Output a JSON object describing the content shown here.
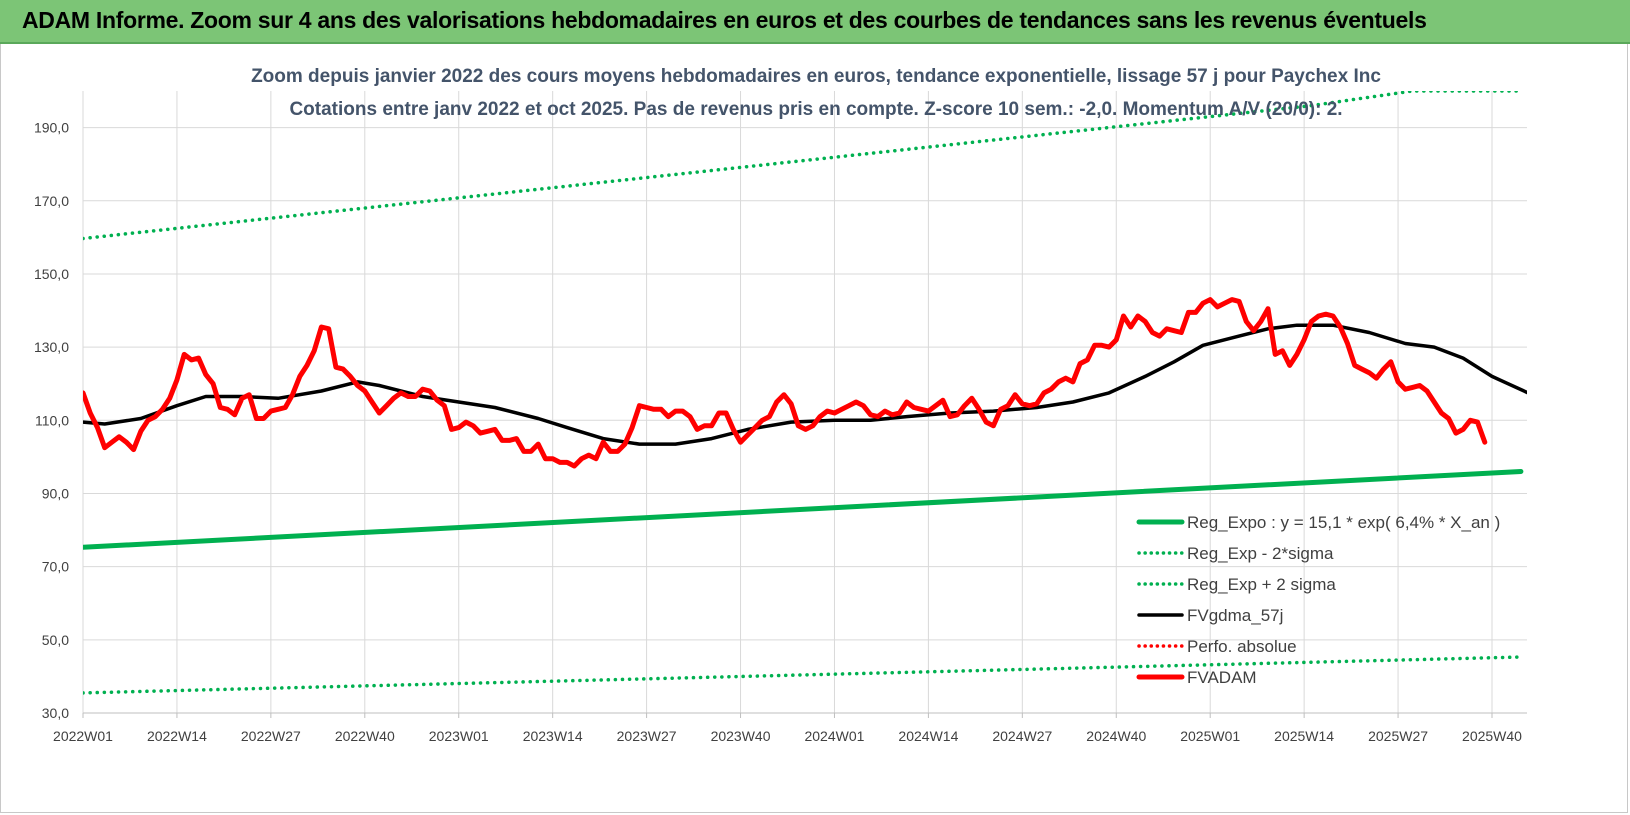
{
  "banner": {
    "title": "ADAM Informe. Zoom sur 4 ans des valorisations hebdomadaires en euros et des courbes de tendances sans les revenus éventuels",
    "background": "#7cc576"
  },
  "chart_data": {
    "type": "line",
    "title": "Zoom depuis janvier 2022 des cours moyens hebdomadaires en euros, tendance exponentielle, lissage 57 j pour Paychex Inc",
    "subtitle": "Cotations entre janv 2022 et oct 2025. Pas de revenus pris en compte. Z-score 10 sem.: -2,0.  Momentum A/V (20/0): 2.",
    "xlabel": "",
    "ylabel": "",
    "ylim": [
      30,
      200
    ],
    "y_ticks": [
      "30,0",
      "50,0",
      "70,0",
      "90,0",
      "110,0",
      "130,0",
      "150,0",
      "170,0",
      "190,0"
    ],
    "x_ticks": [
      "2022W01",
      "2022W14",
      "2022W27",
      "2022W40",
      "2023W01",
      "2023W14",
      "2023W27",
      "2023W40",
      "2024W01",
      "2024W14",
      "2024W27",
      "2024W40",
      "2025W01",
      "2025W14",
      "2025W27",
      "2025W40"
    ],
    "grid": true,
    "legend_position": "bottom-right",
    "n_weeks": 200,
    "series": [
      {
        "name": "Reg_Expo : y = 15,1 * exp( 6,4% * X_an )",
        "color": "#00b050",
        "style": "solid-thick",
        "values": [
          [
            0,
            75.3
          ],
          [
            199,
            96.0
          ]
        ]
      },
      {
        "name": "Reg_Exp - 2*sigma",
        "color": "#00b050",
        "style": "dotted",
        "values": [
          [
            0,
            35.5
          ],
          [
            199,
            45.3
          ]
        ]
      },
      {
        "name": "Reg_Exp + 2 sigma",
        "color": "#00b050",
        "style": "dotted",
        "values": [
          [
            0,
            159.7
          ],
          [
            156,
            193
          ],
          [
            170,
            196
          ],
          [
            184,
            200
          ],
          [
            199,
            200
          ]
        ]
      },
      {
        "name": "FVgdma_57j",
        "color": "#000000",
        "style": "solid",
        "values": [
          [
            0,
            109.5
          ],
          [
            3,
            109
          ],
          [
            8,
            110.5
          ],
          [
            13,
            114
          ],
          [
            17,
            116.5
          ],
          [
            22,
            116.5
          ],
          [
            27,
            116
          ],
          [
            33,
            118
          ],
          [
            38,
            120.5
          ],
          [
            41,
            119.5
          ],
          [
            47,
            116.5
          ],
          [
            52,
            115
          ],
          [
            57,
            113.5
          ],
          [
            63,
            110.5
          ],
          [
            67,
            108
          ],
          [
            72,
            105
          ],
          [
            77,
            103.5
          ],
          [
            82,
            103.5
          ],
          [
            87,
            105
          ],
          [
            92,
            107.5
          ],
          [
            98,
            109.5
          ],
          [
            104,
            110
          ],
          [
            109,
            110
          ],
          [
            114,
            111
          ],
          [
            120,
            112
          ],
          [
            126,
            112.5
          ],
          [
            132,
            113.5
          ],
          [
            137,
            115
          ],
          [
            142,
            117.5
          ],
          [
            147,
            122
          ],
          [
            151,
            126
          ],
          [
            155,
            130.5
          ],
          [
            160,
            133
          ],
          [
            164,
            135
          ],
          [
            168,
            136
          ],
          [
            173,
            136
          ],
          [
            178,
            134
          ],
          [
            183,
            131
          ],
          [
            187,
            130
          ],
          [
            191,
            127
          ],
          [
            195,
            122
          ],
          [
            200,
            117.5
          ],
          [
            205,
            112.5
          ],
          [
            210,
            109
          ]
        ]
      },
      {
        "name": "Perfo. absolue",
        "color": "#ff0000",
        "style": "dotted",
        "values": []
      },
      {
        "name": "FVADAM",
        "color": "#ff0000",
        "style": "solid-thick",
        "values": [
          [
            0,
            117.5
          ],
          [
            1,
            112
          ],
          [
            2,
            108
          ],
          [
            3,
            102.5
          ],
          [
            4,
            104
          ],
          [
            5,
            105.5
          ],
          [
            6,
            104
          ],
          [
            7,
            102
          ],
          [
            8,
            107
          ],
          [
            9,
            110
          ],
          [
            10,
            111
          ],
          [
            11,
            113
          ],
          [
            12,
            116
          ],
          [
            13,
            121
          ],
          [
            14,
            128
          ],
          [
            15,
            126.5
          ],
          [
            16,
            127
          ],
          [
            17,
            122.5
          ],
          [
            18,
            120
          ],
          [
            19,
            113.5
          ],
          [
            20,
            113
          ],
          [
            21,
            111.5
          ],
          [
            22,
            116
          ],
          [
            23,
            117
          ],
          [
            24,
            110.5
          ],
          [
            25,
            110.5
          ],
          [
            26,
            112.5
          ],
          [
            27,
            113
          ],
          [
            28,
            113.5
          ],
          [
            29,
            117
          ],
          [
            30,
            122
          ],
          [
            31,
            125
          ],
          [
            32,
            129
          ],
          [
            33,
            135.5
          ],
          [
            34,
            135
          ],
          [
            35,
            124.5
          ],
          [
            36,
            124
          ],
          [
            37,
            122
          ],
          [
            38,
            119.5
          ],
          [
            39,
            118
          ],
          [
            40,
            115
          ],
          [
            41,
            112
          ],
          [
            42,
            114
          ],
          [
            43,
            116
          ],
          [
            44,
            117.5
          ],
          [
            45,
            116.5
          ],
          [
            46,
            116.5
          ],
          [
            47,
            118.5
          ],
          [
            48,
            118
          ],
          [
            49,
            115.5
          ],
          [
            50,
            114
          ],
          [
            51,
            107.5
          ],
          [
            52,
            108
          ],
          [
            53,
            109.5
          ],
          [
            54,
            108.5
          ],
          [
            55,
            106.5
          ],
          [
            56,
            107
          ],
          [
            57,
            107.5
          ],
          [
            58,
            104.5
          ],
          [
            59,
            104.5
          ],
          [
            60,
            105
          ],
          [
            61,
            101.5
          ],
          [
            62,
            101.5
          ],
          [
            63,
            103.5
          ],
          [
            64,
            99.5
          ],
          [
            65,
            99.5
          ],
          [
            66,
            98.5
          ],
          [
            67,
            98.5
          ],
          [
            68,
            97.5
          ],
          [
            69,
            99.5
          ],
          [
            70,
            100.5
          ],
          [
            71,
            99.5
          ],
          [
            72,
            104
          ],
          [
            73,
            101.5
          ],
          [
            74,
            101.5
          ],
          [
            75,
            103.5
          ],
          [
            76,
            108
          ],
          [
            77,
            114
          ],
          [
            78,
            113.5
          ],
          [
            79,
            113
          ],
          [
            80,
            113
          ],
          [
            81,
            111
          ],
          [
            82,
            112.5
          ],
          [
            83,
            112.5
          ],
          [
            84,
            111
          ],
          [
            85,
            107.5
          ],
          [
            86,
            108.5
          ],
          [
            87,
            108.5
          ],
          [
            88,
            112
          ],
          [
            89,
            112
          ],
          [
            90,
            107.5
          ],
          [
            91,
            104
          ],
          [
            92,
            106
          ],
          [
            93,
            108
          ],
          [
            94,
            110
          ],
          [
            95,
            111
          ],
          [
            96,
            115
          ],
          [
            97,
            117
          ],
          [
            98,
            114.5
          ],
          [
            99,
            108.5
          ],
          [
            100,
            107.5
          ],
          [
            101,
            108.5
          ],
          [
            102,
            111
          ],
          [
            103,
            112.5
          ],
          [
            104,
            112
          ],
          [
            105,
            113
          ],
          [
            106,
            114
          ],
          [
            107,
            115
          ],
          [
            108,
            114
          ],
          [
            109,
            111.5
          ],
          [
            110,
            111
          ],
          [
            111,
            112.5
          ],
          [
            112,
            111.5
          ],
          [
            113,
            112
          ],
          [
            114,
            115
          ],
          [
            115,
            113.5
          ],
          [
            116,
            113
          ],
          [
            117,
            112.5
          ],
          [
            118,
            114
          ],
          [
            119,
            115.5
          ],
          [
            120,
            111
          ],
          [
            121,
            111.5
          ],
          [
            122,
            114
          ],
          [
            123,
            116
          ],
          [
            124,
            113
          ],
          [
            125,
            109.5
          ],
          [
            126,
            108.5
          ],
          [
            127,
            113
          ],
          [
            128,
            114
          ],
          [
            129,
            117
          ],
          [
            130,
            114.5
          ],
          [
            131,
            114
          ],
          [
            132,
            114.5
          ],
          [
            133,
            117.5
          ],
          [
            134,
            118.5
          ],
          [
            135,
            120.5
          ],
          [
            136,
            121.5
          ],
          [
            137,
            120.5
          ],
          [
            138,
            125.5
          ],
          [
            139,
            126.5
          ],
          [
            140,
            130.5
          ],
          [
            141,
            130.5
          ],
          [
            142,
            130
          ],
          [
            143,
            132
          ],
          [
            144,
            138.5
          ],
          [
            145,
            135.5
          ],
          [
            146,
            138.5
          ],
          [
            147,
            137
          ],
          [
            148,
            134
          ],
          [
            149,
            133
          ],
          [
            150,
            135
          ],
          [
            151,
            134.5
          ],
          [
            152,
            134
          ],
          [
            153,
            139.5
          ],
          [
            154,
            139.5
          ],
          [
            155,
            142
          ],
          [
            156,
            143
          ],
          [
            157,
            141
          ],
          [
            158,
            142
          ],
          [
            159,
            143
          ],
          [
            160,
            142.5
          ],
          [
            161,
            137
          ],
          [
            162,
            134.5
          ],
          [
            163,
            137
          ],
          [
            164,
            140.5
          ],
          [
            165,
            128
          ],
          [
            166,
            129
          ],
          [
            167,
            125
          ],
          [
            168,
            128
          ],
          [
            169,
            132
          ],
          [
            170,
            137
          ],
          [
            171,
            138.5
          ],
          [
            172,
            139
          ],
          [
            173,
            138.5
          ],
          [
            174,
            135.5
          ],
          [
            175,
            131
          ],
          [
            176,
            125
          ],
          [
            177,
            124
          ],
          [
            178,
            123
          ],
          [
            179,
            121.5
          ],
          [
            180,
            124
          ],
          [
            181,
            126
          ],
          [
            182,
            120.5
          ],
          [
            183,
            118.5
          ],
          [
            184,
            119
          ],
          [
            185,
            119.5
          ],
          [
            186,
            118
          ],
          [
            187,
            115
          ],
          [
            188,
            112
          ],
          [
            189,
            110.5
          ],
          [
            190,
            106.5
          ],
          [
            191,
            107.5
          ],
          [
            192,
            110
          ],
          [
            193,
            109.5
          ],
          [
            194,
            104
          ]
        ]
      }
    ]
  }
}
